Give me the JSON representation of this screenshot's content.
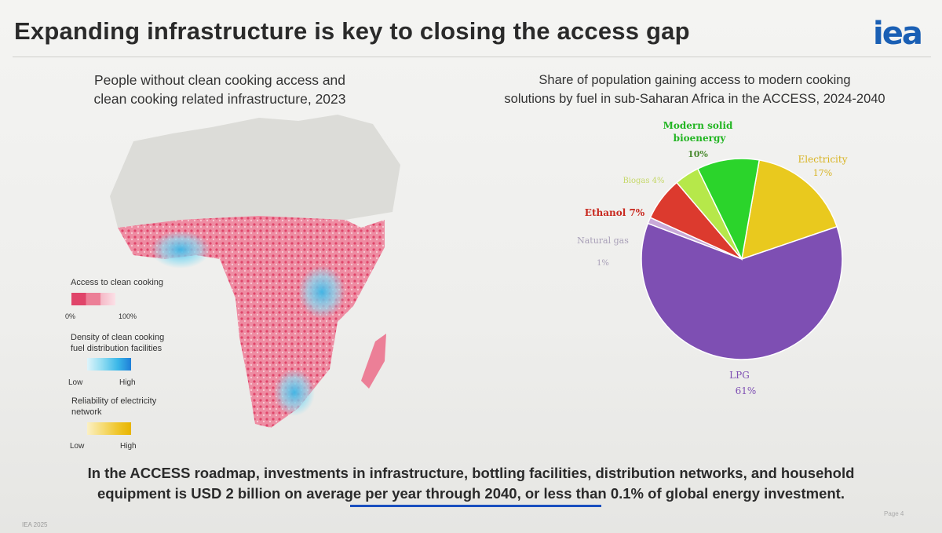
{
  "slide": {
    "title": "Expanding infrastructure is key to closing the access gap",
    "logo": "iea",
    "footer_left": "IEA 2025",
    "footer_right": "Page 4",
    "callout_line1": "In the ACCESS roadmap, investments in infrastructure, bottling facilities, distribution networks, and household",
    "callout_line2": "equipment is USD 2 billion on average per year through 2040, or less than 0.1% of global energy investment."
  },
  "map": {
    "title_line1": "People without clean cooking access and",
    "title_line2": "clean cooking related infrastructure, 2023",
    "legend": {
      "access_title": "Access to clean cooking",
      "access_low": "0%",
      "access_high": "100%",
      "density_title_line1": "Density of clean cooking",
      "density_title_line2": "fuel distribution facilities",
      "density_low": "Low",
      "density_high": "High",
      "reliability_title_line1": "Reliability of electricity",
      "reliability_title_line2": "network",
      "reliability_low": "Low",
      "reliability_high": "High",
      "colors": {
        "access": [
          "#e0456a",
          "#ec7f97",
          "#f5b8c6",
          "#fbe1e7"
        ],
        "density": [
          "#dff4fb",
          "#8fdcf2",
          "#3ab7e8",
          "#1e7ed8"
        ],
        "reliability": [
          "#fbf0c4",
          "#f6dc76",
          "#efc52a",
          "#e8b400"
        ]
      }
    }
  },
  "chart_data": {
    "type": "pie",
    "title": "Share of population gaining access to modern cooking solutions by fuel in sub-Saharan Africa in the ACCESS, 2024-2040",
    "title_line1": "Share of population gaining access to modern cooking",
    "title_line2": "solutions by fuel in sub-Saharan Africa in the ACCESS, 2024-2040",
    "slices": [
      {
        "name": "Electricity",
        "value": 17,
        "label": "17%",
        "color": "#e9c91e"
      },
      {
        "name": "LPG",
        "value": 61,
        "label": "61%",
        "color": "#7e4fb3"
      },
      {
        "name": "Natural gas",
        "value": 1,
        "label": "1%",
        "color": "#c9a9d8"
      },
      {
        "name": "Ethanol",
        "value": 7,
        "label": "7%",
        "color": "#dc3a2e"
      },
      {
        "name": "Biogas",
        "value": 4,
        "label": "4%",
        "color": "#b6e84a"
      },
      {
        "name": "Modern solid bioenergy",
        "value": 10,
        "label": "10%",
        "color": "#2bd42b"
      }
    ],
    "labels": {
      "modern_solid_line1": "Modern solid",
      "modern_solid_line2": "bioenergy",
      "modern_solid_pct": "10%",
      "electricity": "Electricity",
      "electricity_pct": "17%",
      "biogas": "Biogas 4%",
      "ethanol": "Ethanol 7%",
      "natural_gas": "Natural gas",
      "natural_gas_pct": "1%",
      "lpg": "LPG",
      "lpg_pct": "61%"
    },
    "label_colors": {
      "modern_solid": "#22b522",
      "electricity": "#d8b320",
      "biogas": "#c6d86a",
      "ethanol": "#c8281e",
      "natural_gas": "#a9a0b8",
      "lpg": "#7e4fb3"
    }
  }
}
